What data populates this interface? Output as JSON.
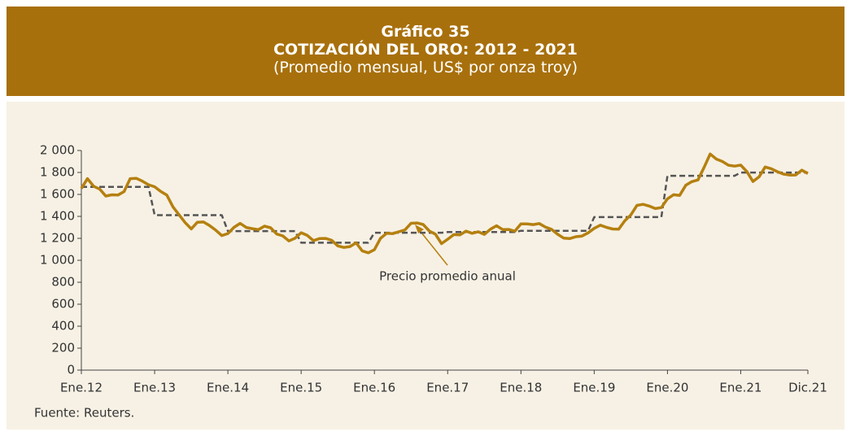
{
  "chart_data": {
    "type": "line",
    "title": "Gráfico 35",
    "subtitle": "COTIZACIÓN DEL ORO: 2012 - 2021",
    "unit_note": "(Promedio mensual, US$ por onza troy)",
    "source": "Fuente: Reuters.",
    "categories": [
      "Ene.12",
      null,
      null,
      null,
      null,
      null,
      null,
      null,
      null,
      null,
      null,
      null,
      "Ene.13",
      null,
      null,
      null,
      null,
      null,
      null,
      null,
      null,
      null,
      null,
      null,
      "Ene.14",
      null,
      null,
      null,
      null,
      null,
      null,
      null,
      null,
      null,
      null,
      null,
      "Ene.15",
      null,
      null,
      null,
      null,
      null,
      null,
      null,
      null,
      null,
      null,
      null,
      "Ene.16",
      null,
      null,
      null,
      null,
      null,
      null,
      null,
      null,
      null,
      null,
      null,
      "Ene.17",
      null,
      null,
      null,
      null,
      null,
      null,
      null,
      null,
      null,
      null,
      null,
      "Ene.18",
      null,
      null,
      null,
      null,
      null,
      null,
      null,
      null,
      null,
      null,
      null,
      "Ene.19",
      null,
      null,
      null,
      null,
      null,
      null,
      null,
      null,
      null,
      null,
      null,
      "Ene.20",
      null,
      null,
      null,
      null,
      null,
      null,
      null,
      null,
      null,
      null,
      null,
      "Ene.21",
      null,
      null,
      null,
      null,
      null,
      null,
      null,
      null,
      null,
      null,
      "Dic.21"
    ],
    "series": [
      {
        "color": "#b5800f",
        "values": [
          1654,
          1744,
          1675,
          1649,
          1585,
          1596,
          1594,
          1626,
          1744,
          1747,
          1721,
          1688,
          1670,
          1627,
          1593,
          1487,
          1414,
          1343,
          1286,
          1347,
          1349,
          1316,
          1275,
          1225,
          1244,
          1300,
          1336,
          1299,
          1288,
          1279,
          1311,
          1296,
          1239,
          1222,
          1176,
          1201,
          1251,
          1227,
          1179,
          1198,
          1199,
          1182,
          1131,
          1117,
          1125,
          1159,
          1086,
          1068,
          1097,
          1200,
          1246,
          1243,
          1260,
          1276,
          1337,
          1340,
          1326,
          1267,
          1238,
          1152,
          1192,
          1234,
          1231,
          1266,
          1246,
          1260,
          1236,
          1283,
          1315,
          1280,
          1281,
          1265,
          1331,
          1331,
          1325,
          1335,
          1303,
          1282,
          1238,
          1202,
          1198,
          1215,
          1221,
          1250,
          1291,
          1320,
          1300,
          1285,
          1283,
          1359,
          1413,
          1500,
          1510,
          1494,
          1471,
          1480,
          1560,
          1597,
          1591,
          1683,
          1716,
          1732,
          1846,
          1968,
          1922,
          1900,
          1866,
          1858,
          1867,
          1808,
          1718,
          1760,
          1850,
          1834,
          1807,
          1785,
          1776,
          1777,
          1821,
          1790
        ]
      },
      {
        "name": "Precio promedio anual",
        "color": "#555555",
        "dashed": true,
        "values": [
          1669,
          1669,
          1669,
          1669,
          1669,
          1669,
          1669,
          1669,
          1669,
          1669,
          1669,
          1669,
          1411,
          1411,
          1411,
          1411,
          1411,
          1411,
          1411,
          1411,
          1411,
          1411,
          1411,
          1411,
          1266,
          1266,
          1266,
          1266,
          1266,
          1266,
          1266,
          1266,
          1266,
          1266,
          1266,
          1266,
          1160,
          1160,
          1160,
          1160,
          1160,
          1160,
          1160,
          1160,
          1160,
          1160,
          1160,
          1160,
          1251,
          1251,
          1251,
          1251,
          1251,
          1251,
          1251,
          1251,
          1251,
          1251,
          1251,
          1251,
          1257,
          1257,
          1257,
          1257,
          1257,
          1257,
          1257,
          1257,
          1257,
          1257,
          1257,
          1257,
          1269,
          1269,
          1269,
          1269,
          1269,
          1269,
          1269,
          1269,
          1269,
          1269,
          1269,
          1269,
          1393,
          1393,
          1393,
          1393,
          1393,
          1393,
          1393,
          1393,
          1393,
          1393,
          1393,
          1393,
          1770,
          1770,
          1770,
          1770,
          1770,
          1770,
          1770,
          1770,
          1770,
          1770,
          1770,
          1770,
          1799,
          1799,
          1799,
          1799,
          1799,
          1799,
          1799,
          1799,
          1799,
          1799,
          1799,
          1799
        ]
      }
    ],
    "ylim": [
      0,
      2000
    ],
    "yticks": [
      0,
      200,
      400,
      600,
      800,
      {
        "value": 1000,
        "label": "1 000"
      },
      {
        "value": 1200,
        "label": "1 200"
      },
      {
        "value": 1400,
        "label": "1 400"
      },
      {
        "value": 1600,
        "label": "1 600"
      },
      {
        "value": 1800,
        "label": "1 800"
      },
      {
        "value": 2000,
        "label": "2 000"
      }
    ],
    "grid": false
  }
}
